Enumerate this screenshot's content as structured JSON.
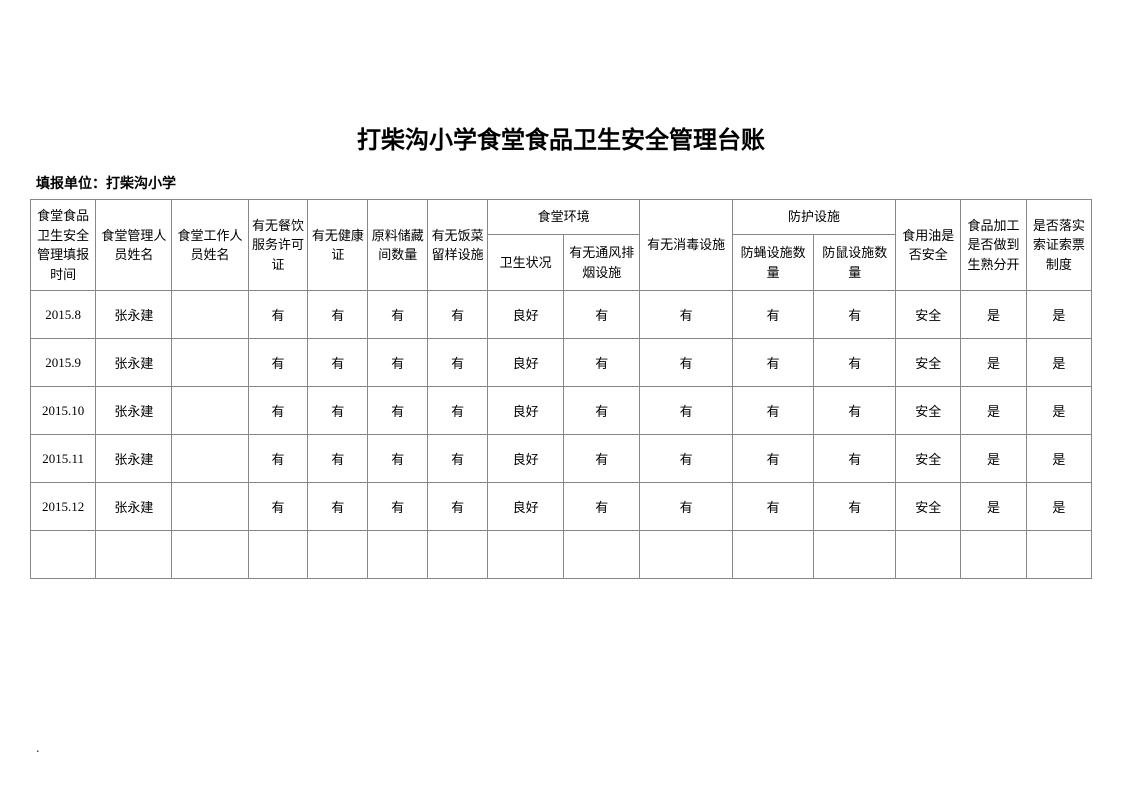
{
  "title": "打柴沟小学食堂食品卫生安全管理台账",
  "subtitle": "填报单位：打柴沟小学",
  "headers": {
    "col1": "食堂食品卫生安全管理填报时间",
    "col2": "食堂管理人员姓名",
    "col3": "食堂工作人员姓名",
    "col4": "有无餐饮服务许可证",
    "col5": "有无健康证",
    "col6": "原料储藏间数量",
    "col7": "有无饭菜留样设施",
    "col8_group": "食堂环境",
    "col8a": "卫生状况",
    "col8b": "有无通风排烟设施",
    "col9": "有无消毒设施",
    "col10_group": "防护设施",
    "col10a": "防蝇设施数量",
    "col10b": "防鼠设施数量",
    "col11": "食用油是否安全",
    "col12": "食品加工是否做到生熟分开",
    "col13": "是否落实索证索票制度"
  },
  "rows": [
    {
      "c1": "2015.8",
      "c2": "张永建",
      "c3": "",
      "c4": "有",
      "c5": "有",
      "c6": "有",
      "c7": "有",
      "c8a": "良好",
      "c8b": "有",
      "c9": "有",
      "c10a": "有",
      "c10b": "有",
      "c11": "安全",
      "c12": "是",
      "c13": "是"
    },
    {
      "c1": "2015.9",
      "c2": "张永建",
      "c3": "",
      "c4": "有",
      "c5": "有",
      "c6": "有",
      "c7": "有",
      "c8a": "良好",
      "c8b": "有",
      "c9": "有",
      "c10a": "有",
      "c10b": "有",
      "c11": "安全",
      "c12": "是",
      "c13": "是"
    },
    {
      "c1": "2015.10",
      "c2": "张永建",
      "c3": "",
      "c4": "有",
      "c5": "有",
      "c6": "有",
      "c7": "有",
      "c8a": "良好",
      "c8b": "有",
      "c9": "有",
      "c10a": "有",
      "c10b": "有",
      "c11": "安全",
      "c12": "是",
      "c13": "是"
    },
    {
      "c1": "2015.11",
      "c2": "张永建",
      "c3": "",
      "c4": "有",
      "c5": "有",
      "c6": "有",
      "c7": "有",
      "c8a": "良好",
      "c8b": "有",
      "c9": "有",
      "c10a": "有",
      "c10b": "有",
      "c11": "安全",
      "c12": "是",
      "c13": "是"
    },
    {
      "c1": "2015.12",
      "c2": "张永建",
      "c3": "",
      "c4": "有",
      "c5": "有",
      "c6": "有",
      "c7": "有",
      "c8a": "良好",
      "c8b": "有",
      "c9": "有",
      "c10a": "有",
      "c10b": "有",
      "c11": "安全",
      "c12": "是",
      "c13": "是"
    },
    {
      "c1": "",
      "c2": "",
      "c3": "",
      "c4": "",
      "c5": "",
      "c6": "",
      "c7": "",
      "c8a": "",
      "c8b": "",
      "c9": "",
      "c10a": "",
      "c10b": "",
      "c11": "",
      "c12": "",
      "c13": ""
    }
  ],
  "colors": {
    "border": "#888888",
    "text": "#000000",
    "background": "#ffffff"
  },
  "colWidths": {
    "c1": 60,
    "c2": 70,
    "c3": 70,
    "c4": 55,
    "c5": 55,
    "c6": 55,
    "c7": 55,
    "c8a": 70,
    "c8b": 70,
    "c9": 85,
    "c10a": 75,
    "c10b": 75,
    "c11": 60,
    "c12": 60,
    "c13": 60
  }
}
